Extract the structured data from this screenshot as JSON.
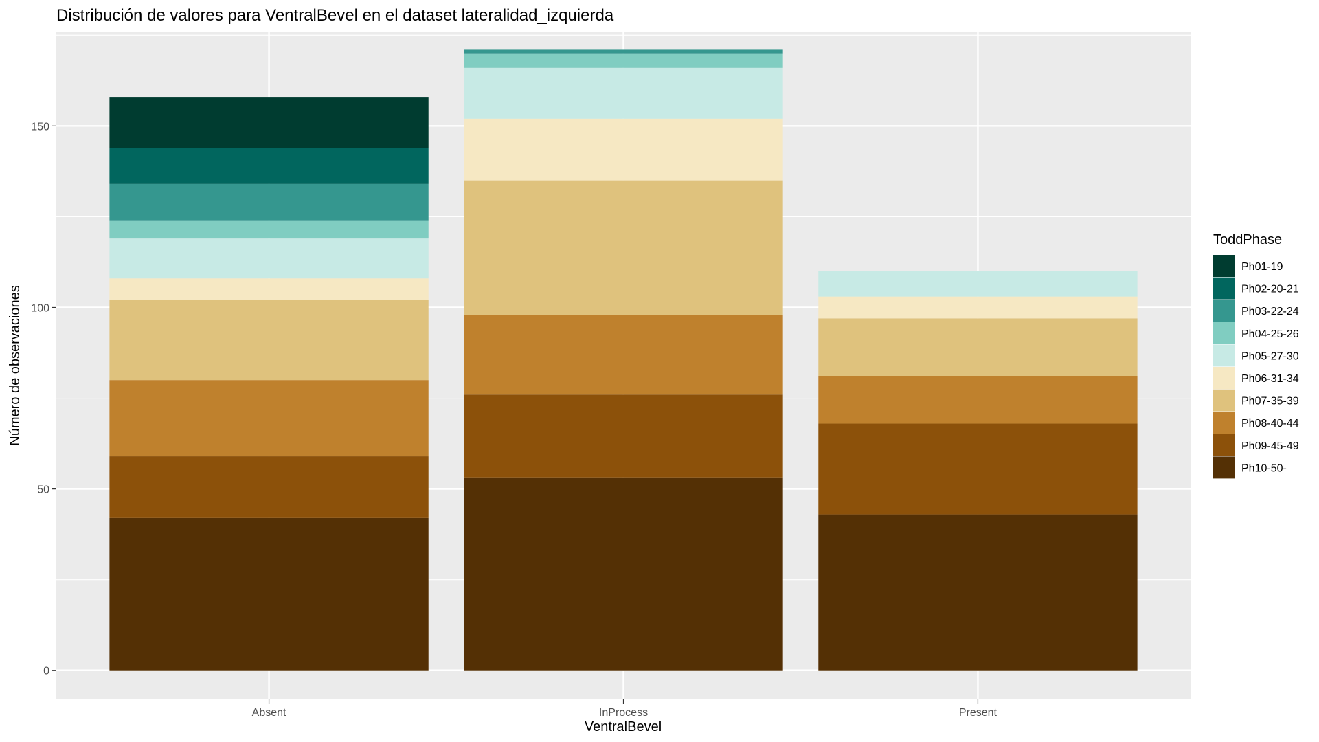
{
  "chart_data": {
    "type": "bar",
    "stacked": true,
    "title": "Distribución de valores para VentralBevel en el dataset lateralidad_izquierda",
    "xlabel": "VentralBevel",
    "ylabel": "Número de observaciones",
    "ylim": [
      -8,
      176
    ],
    "yticks": [
      0,
      50,
      100,
      150
    ],
    "grid": true,
    "legend_position": "right",
    "legend_title": "ToddPhase",
    "categories": [
      "Absent",
      "InProcess",
      "Present"
    ],
    "series": [
      {
        "name": "Ph10-50-",
        "color": "#543005",
        "values": [
          42,
          53,
          43
        ]
      },
      {
        "name": "Ph09-45-49",
        "color": "#8C510A",
        "values": [
          17,
          23,
          25
        ]
      },
      {
        "name": "Ph08-40-44",
        "color": "#BF812D",
        "values": [
          21,
          22,
          13
        ]
      },
      {
        "name": "Ph07-35-39",
        "color": "#DFC27D",
        "values": [
          22,
          37,
          16
        ]
      },
      {
        "name": "Ph06-31-34",
        "color": "#F6E8C3",
        "values": [
          6,
          17,
          6
        ]
      },
      {
        "name": "Ph05-27-30",
        "color": "#C7EAE5",
        "values": [
          11,
          14,
          7
        ]
      },
      {
        "name": "Ph04-25-26",
        "color": "#80CDC1",
        "values": [
          5,
          4,
          0
        ]
      },
      {
        "name": "Ph03-22-24",
        "color": "#35978F",
        "values": [
          10,
          1,
          0
        ]
      },
      {
        "name": "Ph02-20-21",
        "color": "#01665E",
        "values": [
          10,
          0,
          0
        ]
      },
      {
        "name": "Ph01-19",
        "color": "#003C30",
        "values": [
          14,
          0,
          0
        ]
      }
    ]
  }
}
